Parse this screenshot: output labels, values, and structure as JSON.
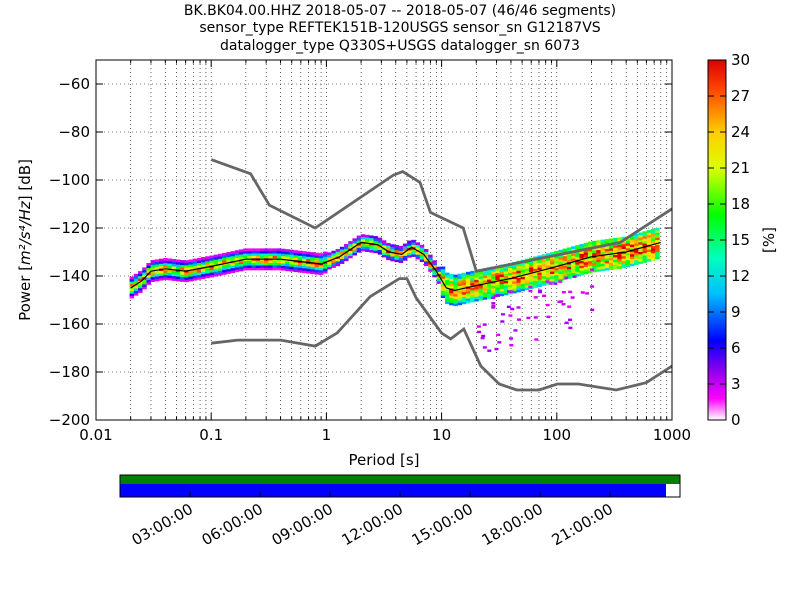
{
  "title_lines": [
    "BK.BK04.00.HHZ   2018-05-07 -- 2018-05-07  (46/46 segments)",
    "sensor_type REFTEK151B-120USGS sensor_sn G12187VS",
    "datalogger_type Q330S+USGS datalogger_sn 6073"
  ],
  "chart_data": {
    "type": "heatmap",
    "xlabel": "Period [s]",
    "ylabel": "Power [m²/s⁴/Hz] [dB]",
    "ylabel_parts": {
      "pre": "Power [",
      "expr": "m²/s⁴/Hz",
      "post": "] [dB]"
    },
    "x_scale": "log",
    "xlim": [
      0.01,
      1000
    ],
    "ylim": [
      -200,
      -50
    ],
    "x_ticks": [
      0.01,
      0.1,
      1,
      10,
      100,
      1000
    ],
    "x_tick_labels": [
      "0.01",
      "0.1",
      "1",
      "10",
      "100",
      "1000"
    ],
    "y_ticks": [
      -200,
      -180,
      -160,
      -140,
      -120,
      -100,
      -80,
      -60
    ],
    "y_tick_labels": [
      "−200",
      "−180",
      "−160",
      "−140",
      "−120",
      "−100",
      "−80",
      "−60"
    ],
    "grid": true,
    "colorbar": {
      "label": "[%]",
      "range": [
        0,
        30
      ],
      "ticks": [
        "0",
        "3",
        "6",
        "9",
        "12",
        "15",
        "18",
        "21",
        "24",
        "27",
        "30"
      ]
    },
    "nhnm_curve": [
      [
        0.1,
        -91.5
      ],
      [
        0.22,
        -97.4
      ],
      [
        0.32,
        -110.5
      ],
      [
        0.8,
        -120
      ],
      [
        3.8,
        -98
      ],
      [
        4.6,
        -96.5
      ],
      [
        6.5,
        -101
      ],
      [
        8,
        -113.5
      ],
      [
        15.4,
        -120
      ],
      [
        20,
        -138
      ],
      [
        354.8,
        -126
      ],
      [
        1000,
        -112
      ]
    ],
    "nlnm_curve": [
      [
        0.1,
        -168
      ],
      [
        0.17,
        -166.7
      ],
      [
        0.4,
        -166.7
      ],
      [
        0.8,
        -169.2
      ],
      [
        1.24,
        -163.7
      ],
      [
        2.4,
        -148.6
      ],
      [
        4.3,
        -141.1
      ],
      [
        5,
        -141.1
      ],
      [
        6,
        -149
      ],
      [
        10,
        -163.8
      ],
      [
        12,
        -166.2
      ],
      [
        15.6,
        -162.1
      ],
      [
        21.9,
        -177.5
      ],
      [
        31.6,
        -185
      ],
      [
        45,
        -187.5
      ],
      [
        70,
        -187.5
      ],
      [
        101,
        -185
      ],
      [
        154,
        -185
      ],
      [
        328,
        -187.5
      ],
      [
        600,
        -184.4
      ],
      [
        1000,
        -177.5
      ]
    ],
    "mode_curve": [
      [
        0.02,
        -145
      ],
      [
        0.025,
        -142
      ],
      [
        0.03,
        -138
      ],
      [
        0.04,
        -137
      ],
      [
        0.06,
        -138
      ],
      [
        0.1,
        -136
      ],
      [
        0.2,
        -133
      ],
      [
        0.4,
        -133
      ],
      [
        0.6,
        -134
      ],
      [
        0.9,
        -135
      ],
      [
        1.3,
        -132
      ],
      [
        2,
        -126
      ],
      [
        2.8,
        -127
      ],
      [
        3.5,
        -130
      ],
      [
        4.5,
        -131
      ],
      [
        5.5,
        -128
      ],
      [
        7,
        -131
      ],
      [
        9,
        -138
      ],
      [
        11,
        -145
      ],
      [
        13,
        -146
      ],
      [
        20,
        -144
      ],
      [
        40,
        -141
      ],
      [
        70,
        -138
      ],
      [
        100,
        -136
      ],
      [
        200,
        -132
      ],
      [
        400,
        -130
      ],
      [
        800,
        -126
      ]
    ],
    "time_axis": {
      "tick_labels": [
        "03:00:00",
        "06:00:00",
        "09:00:00",
        "12:00:00",
        "15:00:00",
        "18:00:00",
        "21:00:00"
      ],
      "data_coverage_fraction": 1.0,
      "psd_coverage_fraction": 0.975
    }
  },
  "colors": {
    "nm_curve": "#666666",
    "mode_curve": "#000000",
    "coverage_top": "#007f00",
    "coverage_bottom": "#0000ff"
  }
}
